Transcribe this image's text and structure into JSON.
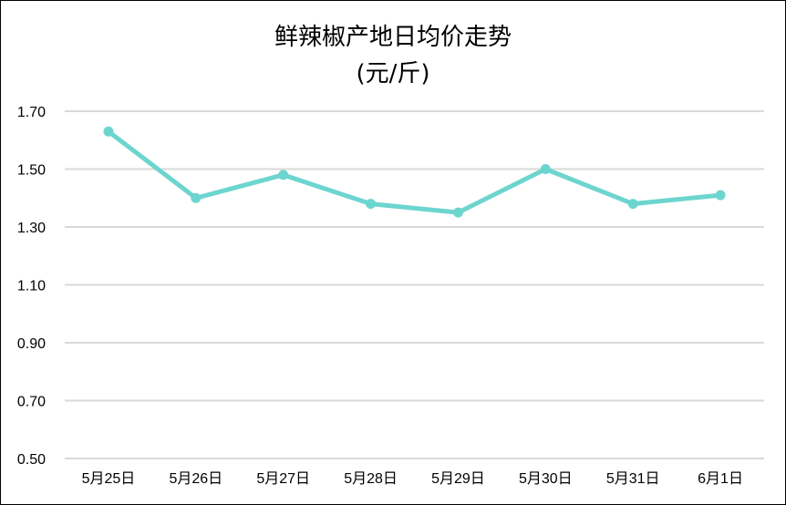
{
  "chart_data": {
    "type": "line",
    "title": "鲜辣椒产地日均价走势",
    "subtitle": "(元/斤)",
    "xlabel": "",
    "ylabel": "",
    "categories": [
      "5月25日",
      "5月26日",
      "5月27日",
      "5月28日",
      "5月29日",
      "5月30日",
      "5月31日",
      "6月1日"
    ],
    "series": [
      {
        "values": [
          1.63,
          1.4,
          1.48,
          1.38,
          1.35,
          1.5,
          1.38,
          1.41
        ],
        "color": "#6DD5CF"
      }
    ],
    "ylim": [
      0.5,
      1.7
    ],
    "yticks": [
      "0.50",
      "0.70",
      "0.90",
      "1.10",
      "1.30",
      "1.50",
      "1.70"
    ],
    "grid": true,
    "legend": "none"
  }
}
